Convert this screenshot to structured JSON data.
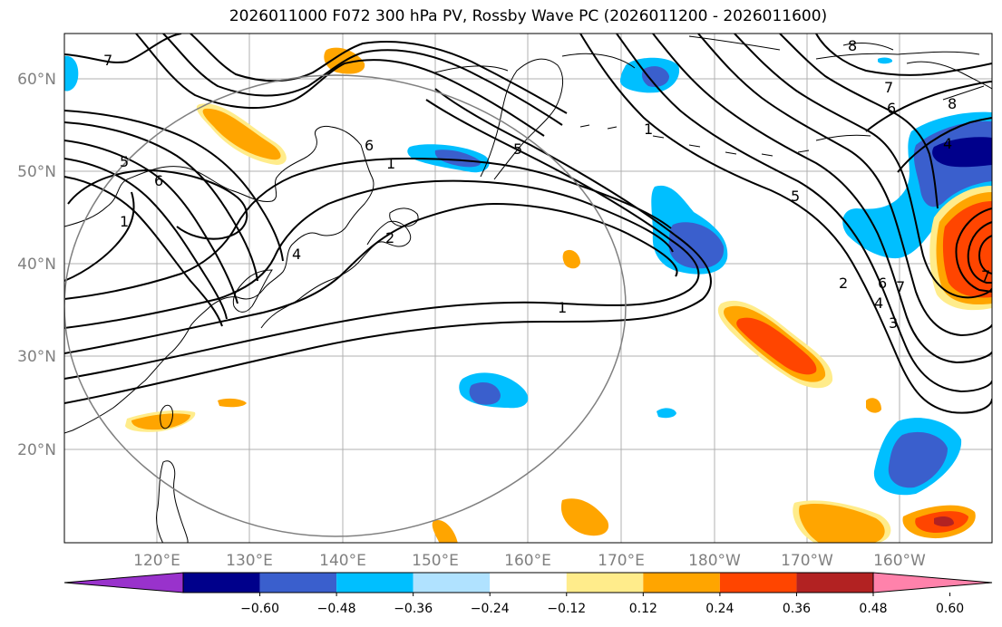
{
  "title": "2026011000 F072 300 hPa PV, Rossby Wave PC (2026011200 - 2026011600)",
  "lat_labels": [
    "60°N",
    "50°N",
    "40°N",
    "30°N",
    "20°N"
  ],
  "lon_labels": [
    "120°E",
    "130°E",
    "140°E",
    "150°E",
    "160°E",
    "170°E",
    "180°W",
    "170°W",
    "160°W"
  ],
  "colorbar": {
    "tick_labels": [
      "−0.60",
      "−0.48",
      "−0.36",
      "−0.24",
      "−0.12",
      "0.12",
      "0.24",
      "0.36",
      "0.48",
      "0.60"
    ],
    "colors": [
      "#9932cc",
      "#00008b",
      "#3a5fcd",
      "#00bfff",
      "#b0e2ff",
      "#ffffff",
      "#ffec8b",
      "#ffa500",
      "#ff4500",
      "#b22222",
      "#ff82ab"
    ]
  },
  "contour_labels": [
    "7",
    "5",
    "6",
    "1",
    "6",
    "2",
    "4",
    "5",
    "1",
    "8",
    "7",
    "6",
    "8",
    "4",
    "1",
    "5",
    "6",
    "7",
    "2",
    "4",
    "3",
    "7",
    "1"
  ],
  "colors": {
    "gridline": "#b0b0b0",
    "coast": "#000000",
    "contour": "#000000",
    "circle": "#808080",
    "axis_text": "#808080"
  }
}
